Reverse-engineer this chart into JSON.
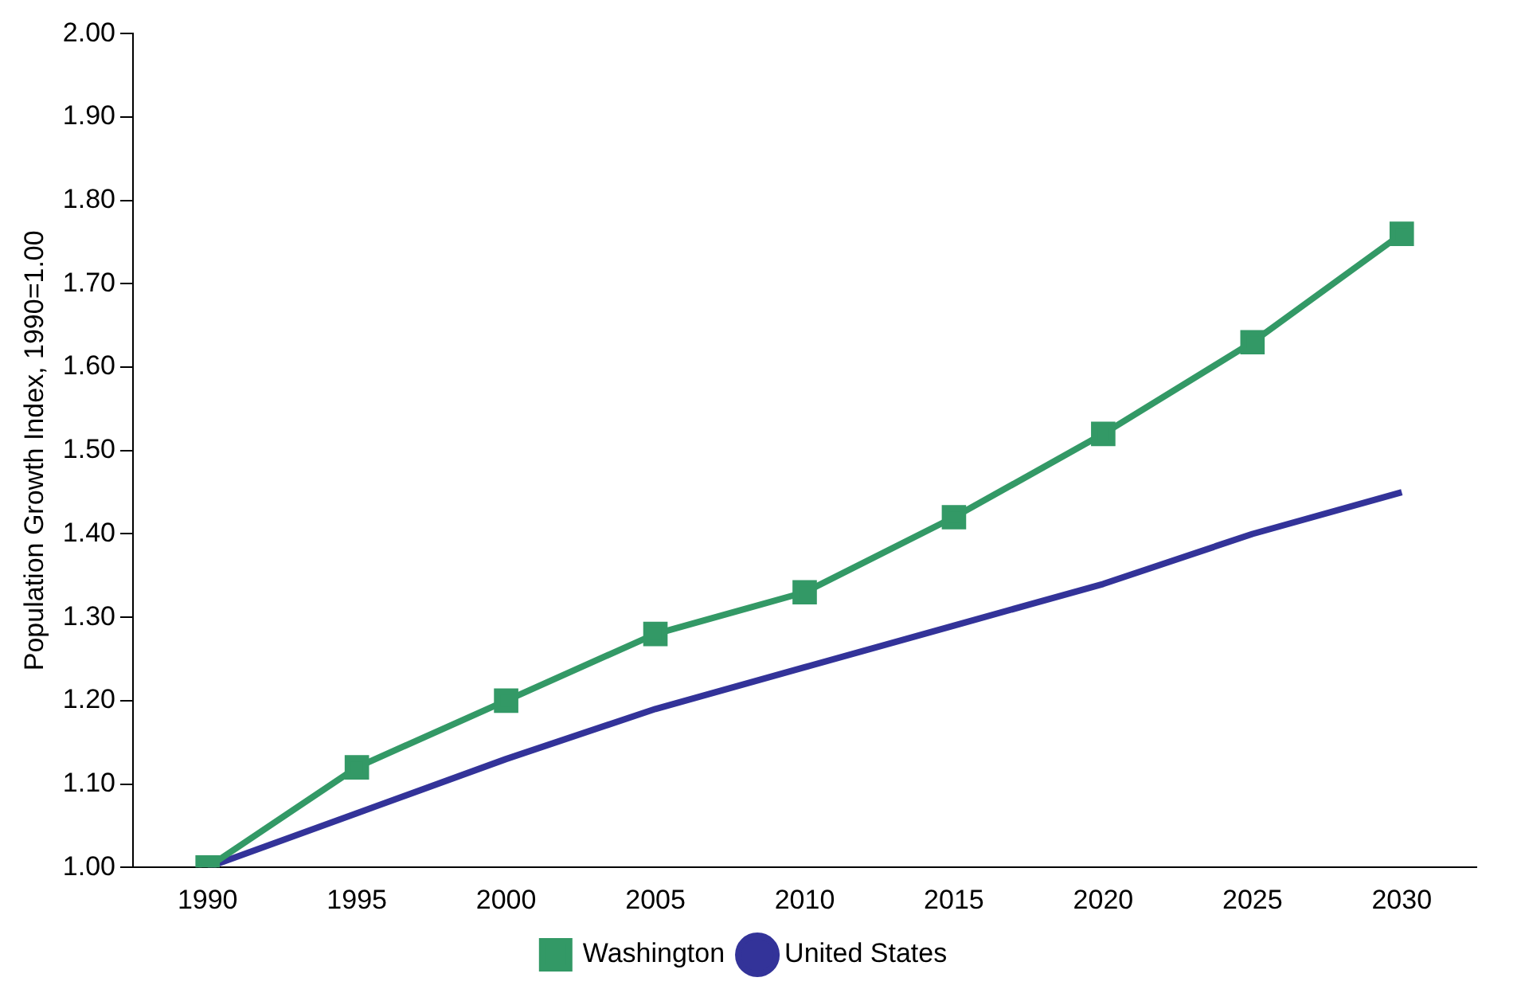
{
  "chart_data": {
    "type": "line",
    "ylabel": "Population Growth Index, 1990=1.00",
    "categories": [
      "1990",
      "1995",
      "2000",
      "2005",
      "2010",
      "2015",
      "2020",
      "2025",
      "2030"
    ],
    "series": [
      {
        "name": "Washington",
        "color": "#339966",
        "marker": "square",
        "values": [
          1.0,
          1.12,
          1.2,
          1.28,
          1.33,
          1.42,
          1.52,
          1.63,
          1.76
        ]
      },
      {
        "name": "United States",
        "color": "#333399",
        "marker": "none",
        "values": [
          1.0,
          1.065,
          1.13,
          1.19,
          1.24,
          1.29,
          1.34,
          1.4,
          1.45
        ]
      }
    ],
    "ylim": [
      1.0,
      2.0
    ],
    "yticks": [
      {
        "value": 1.0,
        "label": "1.00"
      },
      {
        "value": 1.1,
        "label": "1.10"
      },
      {
        "value": 1.2,
        "label": "1.20"
      },
      {
        "value": 1.3,
        "label": "1.30"
      },
      {
        "value": 1.4,
        "label": "1.40"
      },
      {
        "value": 1.5,
        "label": "1.50"
      },
      {
        "value": 1.6,
        "label": "1.60"
      },
      {
        "value": 1.7,
        "label": "1.70"
      },
      {
        "value": 1.8,
        "label": "1.80"
      },
      {
        "value": 1.9,
        "label": "1.90"
      },
      {
        "value": 2.0,
        "label": "2.00"
      }
    ],
    "grid": false,
    "legend": "bottom",
    "line_style": "solid"
  }
}
